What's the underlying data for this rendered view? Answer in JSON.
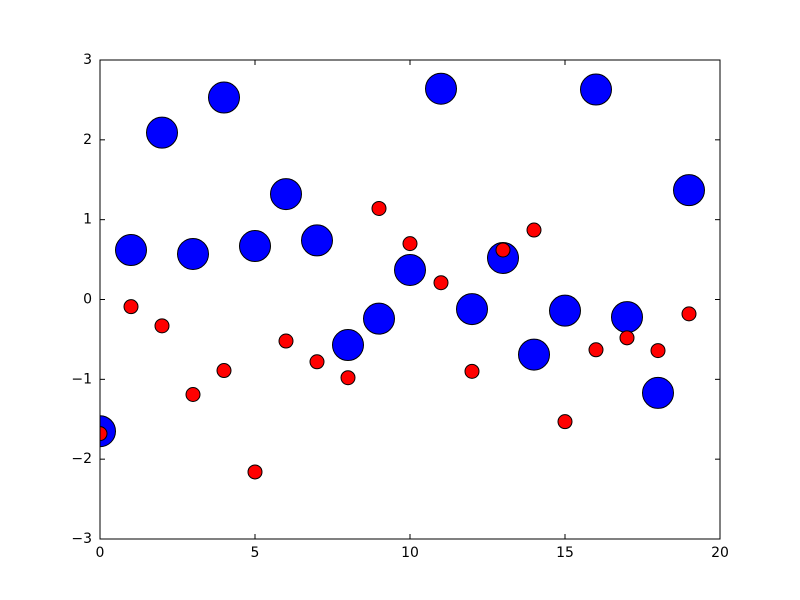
{
  "chart_data": {
    "type": "scatter",
    "x": [
      0,
      1,
      2,
      3,
      4,
      5,
      6,
      7,
      8,
      9,
      10,
      11,
      12,
      13,
      14,
      15,
      16,
      17,
      18,
      19
    ],
    "series": [
      {
        "color": "#0000ff",
        "values": [
          -1.65,
          0.62,
          2.09,
          0.57,
          2.53,
          0.67,
          1.32,
          0.74,
          -0.57,
          -0.24,
          0.37,
          2.64,
          -0.12,
          0.52,
          -0.69,
          -0.14,
          2.63,
          -0.22,
          -1.17,
          1.37
        ]
      },
      {
        "color": "#ff0000",
        "values": [
          -1.68,
          -0.09,
          -0.33,
          -1.19,
          -0.89,
          -2.16,
          -0.52,
          -0.78,
          -0.98,
          1.14,
          0.7,
          0.21,
          -0.9,
          0.62,
          0.87,
          -1.53,
          -0.63,
          -0.48,
          -0.64,
          -0.18
        ]
      }
    ],
    "xlim": [
      0,
      20
    ],
    "xticks": [
      0,
      5,
      10,
      15,
      20
    ],
    "ylim": [
      -3,
      3
    ],
    "yticks": [
      {
        "value": -3,
        "label": "−3"
      },
      {
        "value": -2,
        "label": "−2"
      },
      {
        "value": -1,
        "label": "−1"
      },
      0,
      1,
      2,
      3
    ],
    "grid": false
  }
}
